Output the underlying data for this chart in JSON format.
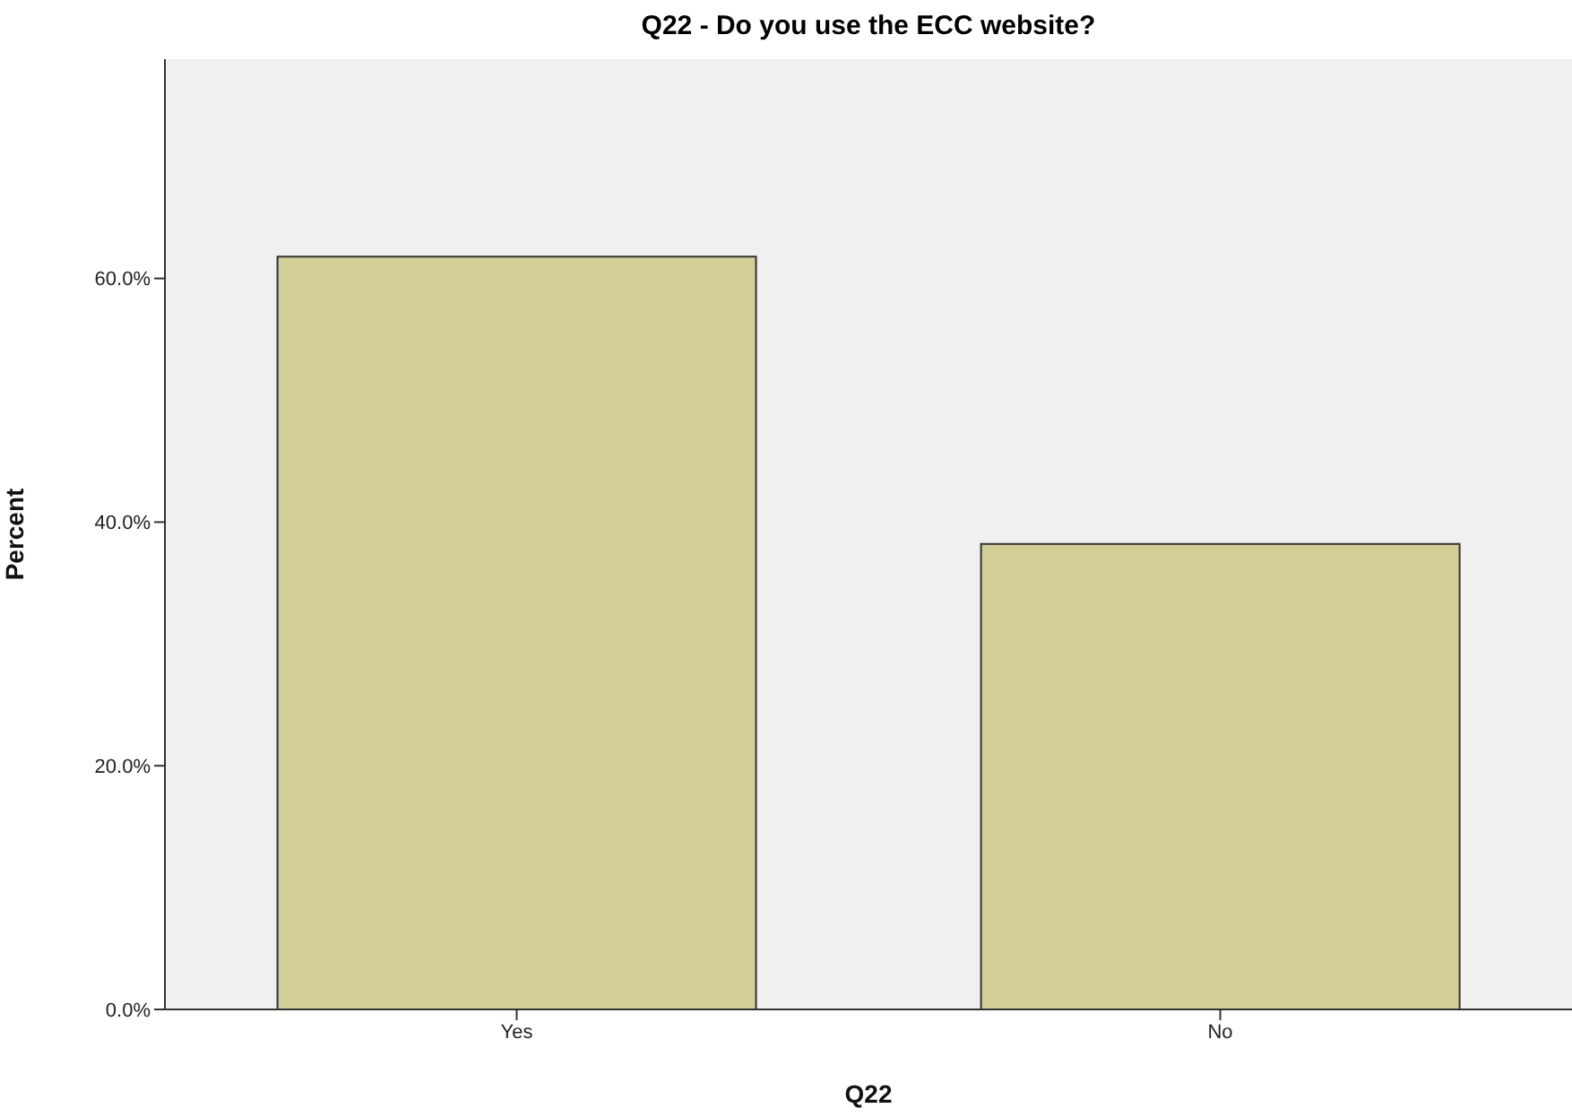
{
  "chart_data": {
    "type": "bar",
    "title": "Q22 - Do you use the ECC website?",
    "xlabel": "Q22",
    "ylabel": "Percent",
    "categories": [
      "Yes",
      "No"
    ],
    "values": [
      61.8,
      38.2
    ],
    "color": "#d3cd97",
    "ylim": [
      0,
      78
    ],
    "yticks": [
      {
        "value": 0,
        "label": "0.0%"
      },
      {
        "value": 20,
        "label": "20.0%"
      },
      {
        "value": 40,
        "label": "40.0%"
      },
      {
        "value": 60,
        "label": "60.0%"
      }
    ]
  }
}
